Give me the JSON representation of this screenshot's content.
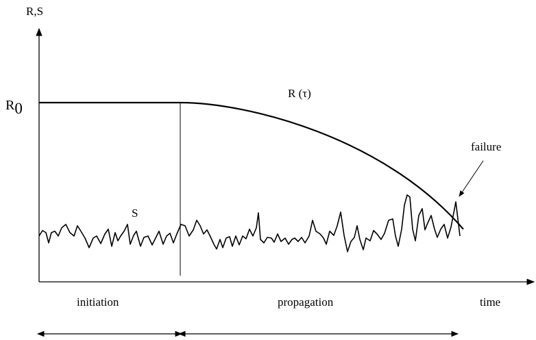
{
  "labels": {
    "y_axis": "R,S",
    "r0_main": "R",
    "r0_sub": "0",
    "r_tau": "R (τ)",
    "s": "S",
    "failure": "failure",
    "initiation": "initiation",
    "propagation": "propagation",
    "time": "time"
  },
  "colors": {
    "ink": "#000000",
    "background": "#ffffff"
  }
}
